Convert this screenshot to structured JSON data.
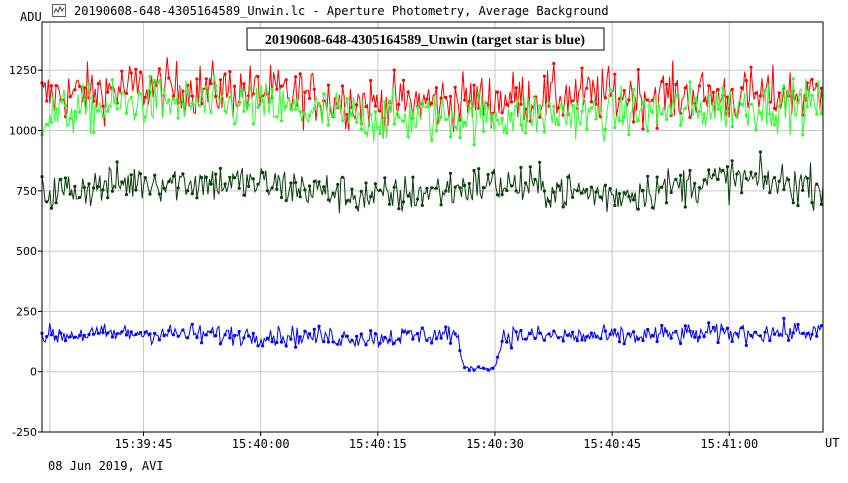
{
  "window": {
    "title": "20190608-648-4305164589_Unwin.lc - Aperture Photometry, Average Background",
    "icon": "light-curve-icon"
  },
  "footer": {
    "date_label": "08 Jun 2019, AVI"
  },
  "colors": {
    "background": "#ffffff",
    "grid": "#c8c8c8",
    "axis": "#000000",
    "target": "#0000ff",
    "comp_red": "#ff0000",
    "comp_lightgreen": "#33ff33",
    "comp_darkgreen": "#0a3d0a"
  },
  "chart_data": {
    "type": "line",
    "title": "20190608-648-4305164589_Unwin (target star is blue)",
    "ylabel": "ADU",
    "xlabel": "UT",
    "ylim": [
      -250,
      1450
    ],
    "xlim": [
      "15:39:32",
      "15:41:12"
    ],
    "yticks": [
      -250,
      0,
      250,
      500,
      750,
      1000,
      1250
    ],
    "xticks": [
      "15:39:45",
      "15:40:00",
      "15:40:15",
      "15:40:30",
      "15:40:45",
      "15:41:00"
    ],
    "grid": true,
    "series": [
      {
        "color_key": "comp_red",
        "mean": 1130,
        "spread": 95,
        "x": [
          "15:39:32",
          "15:39:45",
          "15:40:00",
          "15:40:15",
          "15:40:30",
          "15:40:45",
          "15:41:00",
          "15:41:12"
        ],
        "y": [
          1140,
          1180,
          1160,
          1110,
          1130,
          1150,
          1140,
          1150
        ]
      },
      {
        "color_key": "comp_lightgreen",
        "mean": 1080,
        "spread": 85,
        "x": [
          "15:39:32",
          "15:39:45",
          "15:40:00",
          "15:40:15",
          "15:40:30",
          "15:40:45",
          "15:41:00",
          "15:41:12"
        ],
        "y": [
          1060,
          1120,
          1100,
          1050,
          1060,
          1070,
          1100,
          1110
        ]
      },
      {
        "color_key": "comp_darkgreen",
        "mean": 760,
        "spread": 70,
        "x": [
          "15:39:32",
          "15:39:45",
          "15:40:00",
          "15:40:15",
          "15:40:30",
          "15:40:45",
          "15:41:00",
          "15:41:12"
        ],
        "y": [
          740,
          790,
          780,
          720,
          780,
          730,
          800,
          770
        ]
      },
      {
        "color_key": "target",
        "mean": 150,
        "spread": 35,
        "x": [
          "15:39:32",
          "15:39:45",
          "15:40:00",
          "15:40:15",
          "15:40:25",
          "15:40:26",
          "15:40:30",
          "15:40:31",
          "15:40:45",
          "15:41:00",
          "15:41:12"
        ],
        "y": [
          150,
          160,
          150,
          140,
          160,
          15,
          15,
          150,
          145,
          160,
          165
        ]
      }
    ]
  }
}
